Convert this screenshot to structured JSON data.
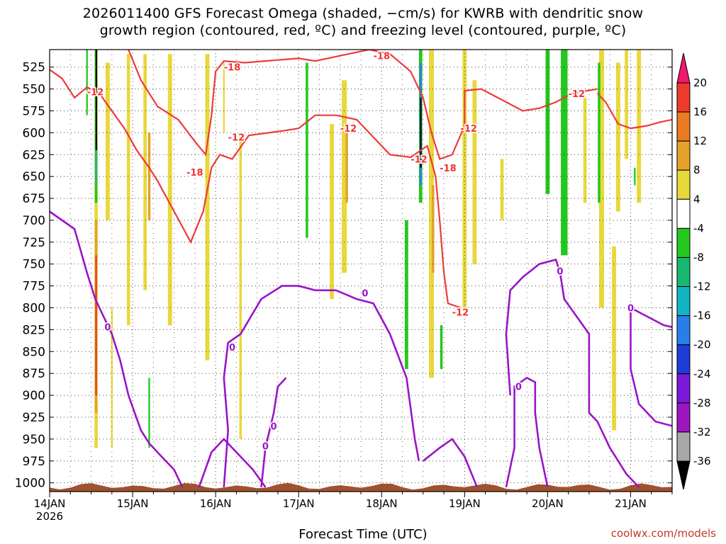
{
  "title_line1": "2026011400 GFS Forecast Omega (shaded, −cm/s) for KWRB with dendritic snow",
  "title_line2": "growth region (contoured, red, ºC) and freezing level (contoured, purple, ºC)",
  "xlabel": "Forecast Time (UTC)",
  "credit": "coolwx.com/models",
  "chart_data": {
    "type": "heatmap",
    "x_range_days": [
      14.0,
      21.5
    ],
    "y_range_hpa": [
      505,
      1010
    ],
    "y_ticks": [
      525,
      550,
      575,
      600,
      625,
      650,
      675,
      700,
      725,
      750,
      775,
      800,
      825,
      850,
      875,
      900,
      925,
      950,
      975,
      1000
    ],
    "x_ticks": [
      {
        "day": 14,
        "label": "14JAN",
        "label2": "2026"
      },
      {
        "day": 15,
        "label": "15JAN"
      },
      {
        "day": 16,
        "label": "16JAN"
      },
      {
        "day": 17,
        "label": "17JAN"
      },
      {
        "day": 18,
        "label": "18JAN"
      },
      {
        "day": 19,
        "label": "19JAN"
      },
      {
        "day": 20,
        "label": "20JAN"
      },
      {
        "day": 21,
        "label": "21JAN"
      }
    ],
    "grid": true,
    "colorbar": {
      "labels": [
        "20",
        "16",
        "12",
        "8",
        "4",
        "-4",
        "-8",
        "-12",
        "-16",
        "-20",
        "-24",
        "-28",
        "-32",
        "-36"
      ],
      "colors": [
        "#f2186e",
        "#ee3a2a",
        "#ec7a22",
        "#e5a22c",
        "#e8d83a",
        "#ffffff",
        "#22c81c",
        "#18b870",
        "#14b4c4",
        "#2a7ee8",
        "#1e3cd8",
        "#7a1ad8",
        "#a014c0",
        "#a8a8a8",
        "#000000"
      ]
    },
    "omega_patches": [
      {
        "d": 14.56,
        "p1": 505,
        "p2": 960,
        "w": 0.04,
        "color": "#e8d83a"
      },
      {
        "d": 14.56,
        "p1": 700,
        "p2": 920,
        "w": 0.03,
        "color": "#e5a22c"
      },
      {
        "d": 14.56,
        "p1": 740,
        "p2": 900,
        "w": 0.02,
        "color": "#ee3a2a"
      },
      {
        "d": 14.56,
        "p1": 505,
        "p2": 680,
        "w": 0.03,
        "color": "#22c81c"
      },
      {
        "d": 14.56,
        "p1": 505,
        "p2": 660,
        "w": 0.02,
        "color": "#14b4c4"
      },
      {
        "d": 14.56,
        "p1": 505,
        "p2": 620,
        "w": 0.012,
        "color": "#000000"
      },
      {
        "d": 14.45,
        "p1": 505,
        "p2": 580,
        "w": 0.02,
        "color": "#22c81c"
      },
      {
        "d": 14.7,
        "p1": 520,
        "p2": 700,
        "w": 0.05,
        "color": "#e8d83a"
      },
      {
        "d": 14.75,
        "p1": 800,
        "p2": 960,
        "w": 0.02,
        "color": "#e8d83a"
      },
      {
        "d": 14.95,
        "p1": 510,
        "p2": 820,
        "w": 0.04,
        "color": "#e8d83a"
      },
      {
        "d": 15.15,
        "p1": 510,
        "p2": 780,
        "w": 0.04,
        "color": "#e8d83a"
      },
      {
        "d": 15.2,
        "p1": 600,
        "p2": 700,
        "w": 0.03,
        "color": "#e5a22c"
      },
      {
        "d": 15.2,
        "p1": 880,
        "p2": 960,
        "w": 0.02,
        "color": "#22c81c"
      },
      {
        "d": 15.45,
        "p1": 510,
        "p2": 820,
        "w": 0.05,
        "color": "#e8d83a"
      },
      {
        "d": 15.9,
        "p1": 510,
        "p2": 860,
        "w": 0.05,
        "color": "#e8d83a"
      },
      {
        "d": 16.1,
        "p1": 520,
        "p2": 600,
        "w": 0.02,
        "color": "#e8d83a"
      },
      {
        "d": 16.3,
        "p1": 600,
        "p2": 950,
        "w": 0.03,
        "color": "#e8d83a"
      },
      {
        "d": 17.1,
        "p1": 520,
        "p2": 720,
        "w": 0.03,
        "color": "#22c81c"
      },
      {
        "d": 17.4,
        "p1": 590,
        "p2": 790,
        "w": 0.05,
        "color": "#e8d83a"
      },
      {
        "d": 17.55,
        "p1": 540,
        "p2": 760,
        "w": 0.06,
        "color": "#e8d83a"
      },
      {
        "d": 17.58,
        "p1": 600,
        "p2": 680,
        "w": 0.03,
        "color": "#e5a22c"
      },
      {
        "d": 18.3,
        "p1": 700,
        "p2": 870,
        "w": 0.04,
        "color": "#22c81c"
      },
      {
        "d": 18.47,
        "p1": 505,
        "p2": 680,
        "w": 0.04,
        "color": "#22c81c"
      },
      {
        "d": 18.47,
        "p1": 520,
        "p2": 660,
        "w": 0.025,
        "color": "#2a7ee8"
      },
      {
        "d": 18.47,
        "p1": 560,
        "p2": 640,
        "w": 0.012,
        "color": "#000000"
      },
      {
        "d": 18.6,
        "p1": 505,
        "p2": 880,
        "w": 0.06,
        "color": "#e8d83a"
      },
      {
        "d": 18.62,
        "p1": 660,
        "p2": 760,
        "w": 0.03,
        "color": "#e5a22c"
      },
      {
        "d": 18.72,
        "p1": 820,
        "p2": 870,
        "w": 0.03,
        "color": "#22c81c"
      },
      {
        "d": 19.0,
        "p1": 505,
        "p2": 800,
        "w": 0.05,
        "color": "#e8d83a"
      },
      {
        "d": 19.12,
        "p1": 540,
        "p2": 750,
        "w": 0.05,
        "color": "#e8d83a"
      },
      {
        "d": 19.45,
        "p1": 630,
        "p2": 700,
        "w": 0.04,
        "color": "#e8d83a"
      },
      {
        "d": 20.0,
        "p1": 505,
        "p2": 670,
        "w": 0.05,
        "color": "#22c81c"
      },
      {
        "d": 20.2,
        "p1": 505,
        "p2": 740,
        "w": 0.08,
        "color": "#22c81c"
      },
      {
        "d": 20.45,
        "p1": 560,
        "p2": 680,
        "w": 0.04,
        "color": "#e8d83a"
      },
      {
        "d": 20.65,
        "p1": 505,
        "p2": 800,
        "w": 0.06,
        "color": "#e8d83a"
      },
      {
        "d": 20.62,
        "p1": 520,
        "p2": 680,
        "w": 0.03,
        "color": "#22c81c"
      },
      {
        "d": 20.85,
        "p1": 520,
        "p2": 690,
        "w": 0.05,
        "color": "#e8d83a"
      },
      {
        "d": 20.8,
        "p1": 730,
        "p2": 940,
        "w": 0.05,
        "color": "#e8d83a"
      },
      {
        "d": 21.05,
        "p1": 640,
        "p2": 660,
        "w": 0.02,
        "color": "#22c81c"
      },
      {
        "d": 21.1,
        "p1": 505,
        "p2": 680,
        "w": 0.05,
        "color": "#e8d83a"
      },
      {
        "d": 20.95,
        "p1": 505,
        "p2": 630,
        "w": 0.04,
        "color": "#e8d83a"
      }
    ],
    "red_contours": [
      {
        "label": "-12",
        "points": [
          [
            14.0,
            528
          ],
          [
            14.15,
            538
          ],
          [
            14.3,
            560
          ],
          [
            14.45,
            548
          ],
          [
            14.6,
            555
          ],
          [
            14.75,
            575
          ],
          [
            14.9,
            595
          ],
          [
            15.05,
            620
          ],
          [
            15.2,
            640
          ],
          [
            15.3,
            655
          ],
          [
            15.5,
            690
          ],
          [
            15.7,
            725
          ],
          [
            15.85,
            690
          ],
          [
            15.95,
            640
          ],
          [
            16.05,
            625
          ],
          [
            16.2,
            630
          ],
          [
            16.4,
            603
          ],
          [
            16.8,
            598
          ],
          [
            17.0,
            595
          ],
          [
            17.2,
            580
          ],
          [
            17.45,
            580
          ],
          [
            17.7,
            585
          ],
          [
            17.9,
            605
          ],
          [
            18.1,
            625
          ],
          [
            18.35,
            628
          ],
          [
            18.55,
            615
          ],
          [
            18.65,
            650
          ],
          [
            18.7,
            700
          ],
          [
            18.75,
            760
          ],
          [
            18.8,
            795
          ],
          [
            18.95,
            800
          ]
        ]
      },
      {
        "label": "-18",
        "points": [
          [
            14.95,
            505
          ],
          [
            15.1,
            540
          ],
          [
            15.3,
            570
          ],
          [
            15.55,
            585
          ],
          [
            15.75,
            610
          ],
          [
            15.88,
            625
          ],
          [
            15.95,
            580
          ],
          [
            16.0,
            530
          ],
          [
            16.1,
            518
          ],
          [
            16.35,
            520
          ],
          [
            16.6,
            518
          ],
          [
            17.0,
            515
          ],
          [
            17.2,
            518
          ],
          [
            17.35,
            515
          ],
          [
            17.6,
            510
          ],
          [
            17.85,
            505
          ],
          [
            18.1,
            510
          ],
          [
            18.35,
            530
          ],
          [
            18.5,
            560
          ],
          [
            18.6,
            600
          ],
          [
            18.7,
            630
          ],
          [
            18.85,
            625
          ],
          [
            19.0,
            592
          ],
          [
            19.0,
            552
          ],
          [
            19.2,
            550
          ],
          [
            19.5,
            565
          ],
          [
            19.7,
            575
          ],
          [
            19.9,
            572
          ],
          [
            20.1,
            565
          ],
          [
            20.3,
            555
          ],
          [
            20.6,
            550
          ]
        ]
      },
      {
        "label": "",
        "points": [
          [
            20.6,
            555
          ],
          [
            20.7,
            565
          ],
          [
            20.85,
            590
          ],
          [
            21.0,
            595
          ],
          [
            21.2,
            592
          ],
          [
            21.35,
            588
          ],
          [
            21.5,
            585
          ]
        ]
      }
    ],
    "red_labels": [
      {
        "d": 14.55,
        "p": 553,
        "text": "-12"
      },
      {
        "d": 15.75,
        "p": 645,
        "text": "-18"
      },
      {
        "d": 16.2,
        "p": 525,
        "text": "-18"
      },
      {
        "d": 16.25,
        "p": 605,
        "text": "-12"
      },
      {
        "d": 17.6,
        "p": 595,
        "text": "-12"
      },
      {
        "d": 18.0,
        "p": 512,
        "text": "-18"
      },
      {
        "d": 18.45,
        "p": 630,
        "text": "-12"
      },
      {
        "d": 18.8,
        "p": 640,
        "text": "-18"
      },
      {
        "d": 19.05,
        "p": 595,
        "text": "-12"
      },
      {
        "d": 18.95,
        "p": 805,
        "text": "-12"
      },
      {
        "d": 20.35,
        "p": 555,
        "text": "-12"
      }
    ],
    "purple_contours": [
      {
        "label": "0",
        "points": [
          [
            14.0,
            690
          ],
          [
            14.15,
            700
          ],
          [
            14.3,
            710
          ],
          [
            14.45,
            760
          ],
          [
            14.55,
            790
          ],
          [
            14.65,
            810
          ],
          [
            14.75,
            830
          ],
          [
            14.85,
            860
          ],
          [
            14.95,
            900
          ],
          [
            15.1,
            940
          ],
          [
            15.2,
            955
          ],
          [
            15.35,
            970
          ],
          [
            15.5,
            985
          ],
          [
            15.6,
            1005
          ]
        ]
      },
      {
        "label": "0",
        "points": [
          [
            15.8,
            1005
          ],
          [
            15.95,
            965
          ],
          [
            16.1,
            950
          ],
          [
            16.3,
            970
          ],
          [
            16.45,
            985
          ],
          [
            16.6,
            1005
          ]
        ]
      },
      {
        "label": "0",
        "points": [
          [
            16.1,
            1005
          ],
          [
            16.15,
            940
          ],
          [
            16.1,
            880
          ],
          [
            16.15,
            840
          ],
          [
            16.3,
            830
          ],
          [
            16.55,
            790
          ],
          [
            16.8,
            775
          ],
          [
            17.0,
            775
          ],
          [
            17.2,
            780
          ],
          [
            17.45,
            780
          ],
          [
            17.7,
            790
          ],
          [
            17.9,
            795
          ],
          [
            18.1,
            830
          ],
          [
            18.3,
            880
          ],
          [
            18.4,
            950
          ],
          [
            18.45,
            975
          ]
        ]
      },
      {
        "label": "0",
        "points": [
          [
            16.55,
            1005
          ],
          [
            16.6,
            960
          ],
          [
            16.7,
            920
          ],
          [
            16.75,
            890
          ],
          [
            16.85,
            880
          ]
        ]
      },
      {
        "label": "",
        "points": [
          [
            18.5,
            975
          ],
          [
            18.7,
            960
          ],
          [
            18.85,
            950
          ],
          [
            19.0,
            970
          ],
          [
            19.15,
            1005
          ]
        ]
      },
      {
        "label": "0",
        "points": [
          [
            19.5,
            1005
          ],
          [
            19.6,
            960
          ],
          [
            19.6,
            890
          ],
          [
            19.75,
            880
          ],
          [
            19.85,
            885
          ],
          [
            19.85,
            920
          ],
          [
            19.9,
            960
          ],
          [
            20.0,
            1005
          ]
        ]
      },
      {
        "label": "0",
        "points": [
          [
            19.55,
            900
          ],
          [
            19.5,
            830
          ],
          [
            19.55,
            780
          ],
          [
            19.7,
            765
          ],
          [
            19.9,
            750
          ],
          [
            20.1,
            745
          ],
          [
            20.15,
            760
          ],
          [
            20.2,
            790
          ],
          [
            20.35,
            810
          ],
          [
            20.5,
            830
          ],
          [
            20.5,
            880
          ],
          [
            20.5,
            920
          ],
          [
            20.6,
            930
          ],
          [
            20.75,
            960
          ],
          [
            20.95,
            990
          ],
          [
            21.1,
            1005
          ]
        ]
      },
      {
        "label": "0",
        "points": [
          [
            21.0,
            800
          ],
          [
            21.2,
            810
          ],
          [
            21.4,
            820
          ],
          [
            21.5,
            822
          ]
        ]
      },
      {
        "label": "",
        "points": [
          [
            21.0,
            800
          ],
          [
            21.0,
            870
          ],
          [
            21.1,
            910
          ],
          [
            21.3,
            930
          ],
          [
            21.5,
            935
          ]
        ]
      }
    ],
    "purple_labels": [
      {
        "d": 14.7,
        "p": 822,
        "text": "0"
      },
      {
        "d": 16.2,
        "p": 845,
        "text": "0"
      },
      {
        "d": 17.8,
        "p": 783,
        "text": "0"
      },
      {
        "d": 16.7,
        "p": 935,
        "text": "0"
      },
      {
        "d": 16.6,
        "p": 958,
        "text": "0"
      },
      {
        "d": 19.65,
        "p": 890,
        "text": "0"
      },
      {
        "d": 20.15,
        "p": 758,
        "text": "0"
      },
      {
        "d": 21.0,
        "p": 800,
        "text": "0"
      }
    ]
  }
}
